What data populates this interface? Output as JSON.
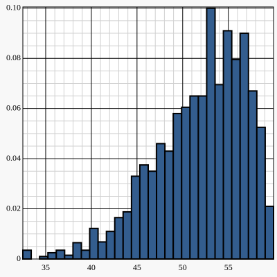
{
  "chart_data": {
    "type": "histogram",
    "bins": [
      32.5,
      33.415,
      34.33,
      35.245,
      36.16,
      37.075,
      37.99,
      38.905,
      39.82,
      40.735,
      41.65,
      42.565,
      43.48,
      44.395,
      45.31,
      46.225,
      47.14,
      48.055,
      48.97,
      49.885,
      50.8,
      51.715,
      52.63,
      53.545,
      54.46,
      55.375,
      56.29,
      57.205,
      58.12,
      59.035,
      59.95
    ],
    "values": [
      0.0035,
      0,
      0.001,
      0.0025,
      0.0035,
      0.0015,
      0.0065,
      0.0035,
      0.0122,
      0.0068,
      0.011,
      0.0165,
      0.0188,
      0.033,
      0.0375,
      0.035,
      0.046,
      0.043,
      0.058,
      0.0605,
      0.065,
      0.065,
      0.1,
      0.0695,
      0.091,
      0.0795,
      0.09,
      0.067,
      0.0525,
      0.021
    ],
    "color": "#335d8e",
    "xlim": [
      32.5,
      59.95
    ],
    "ylim": [
      0,
      0.1005
    ],
    "xticks": [
      35,
      40,
      45,
      50,
      55
    ],
    "yticks": [
      0,
      0.02,
      0.04,
      0.06,
      0.08,
      {
        "value": 0.1,
        "label": "0.10"
      }
    ],
    "xminorticks": [
      33,
      34,
      36,
      37,
      38,
      39,
      41,
      42,
      43,
      44,
      46,
      47,
      48,
      49,
      51,
      52,
      53,
      54,
      56,
      57,
      58,
      59
    ],
    "yminorticks": [
      0.005,
      0.01,
      0.015,
      0.025,
      0.03,
      0.035,
      0.045,
      0.05,
      0.055,
      0.065,
      0.07,
      0.075,
      0.085,
      0.09,
      0.095
    ],
    "grid": true
  }
}
